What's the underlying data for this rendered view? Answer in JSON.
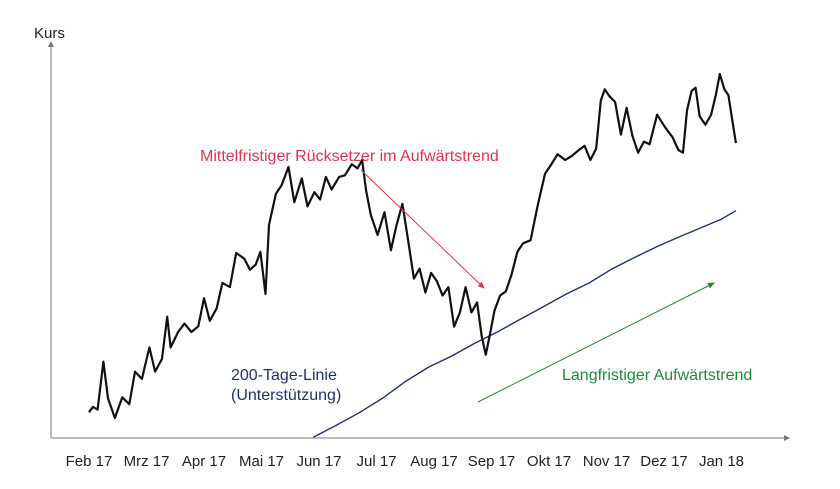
{
  "chart_data": {
    "type": "line",
    "ylabel": "Kurs",
    "xlabel": "",
    "categories": [
      "Feb 17",
      "Mrz 17",
      "Apr 17",
      "Mai 17",
      "Jun 17",
      "Jul 17",
      "Aug 17",
      "Sep 17",
      "Okt 17",
      "Nov 17",
      "Dez 17",
      "Jan 18"
    ],
    "ylim": [
      0,
      100
    ],
    "grid": false,
    "series": [
      {
        "key": "price",
        "color": "#111111",
        "values": [
          [
            0.0,
            6.7
          ],
          [
            0.07,
            8.1
          ],
          [
            0.15,
            7.4
          ],
          [
            0.25,
            19.9
          ],
          [
            0.33,
            10.3
          ],
          [
            0.45,
            5.2
          ],
          [
            0.58,
            10.6
          ],
          [
            0.7,
            8.8
          ],
          [
            0.8,
            17.3
          ],
          [
            0.92,
            15.4
          ],
          [
            1.05,
            23.6
          ],
          [
            1.15,
            17.3
          ],
          [
            1.27,
            20.6
          ],
          [
            1.36,
            31.6
          ],
          [
            1.42,
            23.6
          ],
          [
            1.55,
            27.6
          ],
          [
            1.66,
            29.8
          ],
          [
            1.78,
            27.6
          ],
          [
            1.9,
            29.1
          ],
          [
            2.0,
            36.4
          ],
          [
            2.1,
            30.5
          ],
          [
            2.22,
            33.8
          ],
          [
            2.32,
            40.4
          ],
          [
            2.45,
            39.3
          ],
          [
            2.56,
            48.2
          ],
          [
            2.7,
            46.7
          ],
          [
            2.8,
            43.8
          ],
          [
            2.9,
            45.2
          ],
          [
            2.98,
            48.5
          ],
          [
            3.07,
            37.5
          ],
          [
            3.13,
            55.5
          ],
          [
            3.25,
            63.6
          ],
          [
            3.35,
            65.8
          ],
          [
            3.47,
            70.6
          ],
          [
            3.57,
            61.4
          ],
          [
            3.7,
            67.6
          ],
          [
            3.8,
            60.3
          ],
          [
            3.92,
            64.0
          ],
          [
            4.02,
            62.1
          ],
          [
            4.12,
            68.0
          ],
          [
            4.22,
            64.7
          ],
          [
            4.35,
            68.0
          ],
          [
            4.45,
            68.4
          ],
          [
            4.57,
            71.3
          ],
          [
            4.67,
            70.2
          ],
          [
            4.75,
            72.4
          ],
          [
            4.82,
            64.3
          ],
          [
            4.9,
            58.1
          ],
          [
            5.02,
            52.9
          ],
          [
            5.14,
            58.8
          ],
          [
            5.25,
            48.9
          ],
          [
            5.35,
            55.5
          ],
          [
            5.45,
            61.0
          ],
          [
            5.55,
            51.5
          ],
          [
            5.65,
            41.5
          ],
          [
            5.75,
            44.1
          ],
          [
            5.85,
            37.9
          ],
          [
            5.95,
            43.0
          ],
          [
            6.05,
            40.8
          ],
          [
            6.15,
            37.1
          ],
          [
            6.25,
            39.3
          ],
          [
            6.35,
            29.0
          ],
          [
            6.45,
            32.7
          ],
          [
            6.55,
            39.3
          ],
          [
            6.65,
            32.7
          ],
          [
            6.75,
            35.3
          ],
          [
            6.83,
            26.5
          ],
          [
            6.9,
            21.7
          ],
          [
            6.97,
            26.8
          ],
          [
            7.05,
            33.1
          ],
          [
            7.15,
            37.1
          ],
          [
            7.25,
            38.2
          ],
          [
            7.35,
            42.6
          ],
          [
            7.45,
            48.5
          ],
          [
            7.55,
            50.7
          ],
          [
            7.68,
            51.5
          ],
          [
            7.8,
            60.3
          ],
          [
            7.93,
            68.8
          ],
          [
            8.03,
            71.0
          ],
          [
            8.15,
            73.9
          ],
          [
            8.28,
            72.4
          ],
          [
            8.4,
            73.5
          ],
          [
            8.52,
            75.0
          ],
          [
            8.62,
            76.1
          ],
          [
            8.72,
            72.4
          ],
          [
            8.82,
            75.4
          ],
          [
            8.9,
            87.9
          ],
          [
            8.97,
            90.8
          ],
          [
            9.05,
            89.0
          ],
          [
            9.15,
            87.5
          ],
          [
            9.25,
            79.0
          ],
          [
            9.35,
            86.0
          ],
          [
            9.45,
            78.7
          ],
          [
            9.55,
            74.3
          ],
          [
            9.65,
            77.2
          ],
          [
            9.75,
            76.5
          ],
          [
            9.88,
            84.2
          ],
          [
            10.02,
            80.9
          ],
          [
            10.15,
            78.3
          ],
          [
            10.25,
            75.0
          ],
          [
            10.33,
            74.3
          ],
          [
            10.4,
            85.3
          ],
          [
            10.48,
            90.4
          ],
          [
            10.55,
            91.2
          ],
          [
            10.62,
            83.8
          ],
          [
            10.72,
            81.6
          ],
          [
            10.82,
            84.2
          ],
          [
            10.9,
            89.3
          ],
          [
            10.97,
            94.8
          ],
          [
            11.05,
            90.8
          ],
          [
            11.12,
            89.3
          ],
          [
            11.2,
            81.6
          ],
          [
            11.25,
            76.8
          ]
        ]
      },
      {
        "key": "ma200",
        "name": "200-Tage-Linie",
        "color": "#22306e",
        "values": [
          [
            3.9,
            0.2
          ],
          [
            4.3,
            3.3
          ],
          [
            4.7,
            6.6
          ],
          [
            5.1,
            10.3
          ],
          [
            5.5,
            14.7
          ],
          [
            5.9,
            18.4
          ],
          [
            6.3,
            21.3
          ],
          [
            6.7,
            24.6
          ],
          [
            7.1,
            27.6
          ],
          [
            7.5,
            30.9
          ],
          [
            7.9,
            34.2
          ],
          [
            8.3,
            37.5
          ],
          [
            8.7,
            40.4
          ],
          [
            9.1,
            44.1
          ],
          [
            9.5,
            47.1
          ],
          [
            9.9,
            50.0
          ],
          [
            10.3,
            52.6
          ],
          [
            10.7,
            55.1
          ],
          [
            11.0,
            57.0
          ],
          [
            11.25,
            59.2
          ]
        ]
      }
    ],
    "annotations": [
      {
        "key": "correction",
        "text": "Mittelfristiger Rücksetzer im Aufwärtstrend",
        "color": "#e0324e"
      },
      {
        "key": "support",
        "lines": [
          "200-Tage-Linie",
          "(Unterstützung)"
        ],
        "color": "#22306e"
      },
      {
        "key": "longtrend",
        "text": "Langfristiger Aufwärtstrend",
        "color": "#21883a"
      }
    ]
  }
}
